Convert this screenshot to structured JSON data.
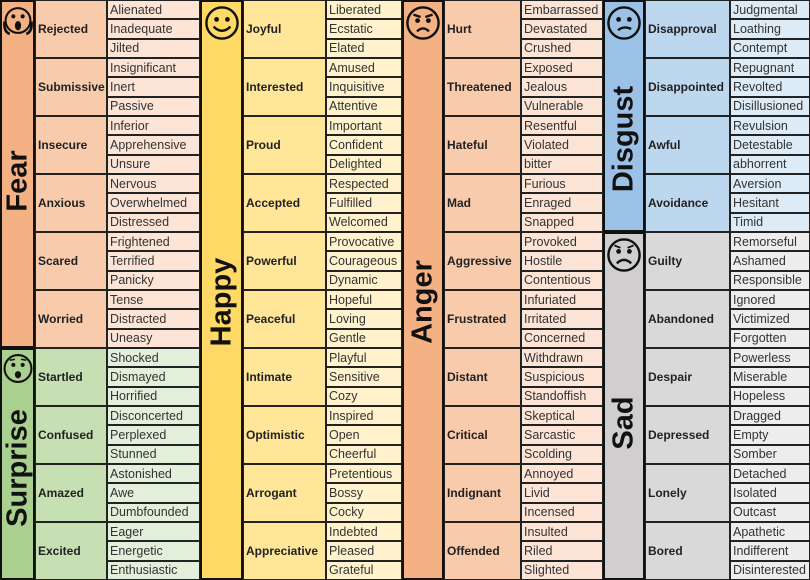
{
  "sections": [
    {
      "name": "Fear",
      "icon": "fearful-face-icon",
      "colors": {
        "main": "#f4b183",
        "secondary": "#f8cbad",
        "tertiary": "#fce4d6"
      },
      "groups": [
        {
          "label": "Rejected",
          "items": [
            "Alienated",
            "Inadequate",
            "Jilted"
          ]
        },
        {
          "label": "Submissive",
          "items": [
            "Insignificant",
            "Inert",
            "Passive"
          ]
        },
        {
          "label": "Insecure",
          "items": [
            "Inferior",
            "Apprehensive",
            "Unsure"
          ]
        },
        {
          "label": "Anxious",
          "items": [
            "Nervous",
            "Overwhelmed",
            "Distressed"
          ]
        },
        {
          "label": "Scared",
          "items": [
            "Frightened",
            "Terrified",
            "Panicky"
          ]
        },
        {
          "label": "Worried",
          "items": [
            "Tense",
            "Distracted",
            "Uneasy"
          ]
        }
      ]
    },
    {
      "name": "Surprise",
      "icon": "surprised-face-icon",
      "colors": {
        "main": "#a9d08e",
        "secondary": "#c6e0b4",
        "tertiary": "#e2efda"
      },
      "groups": [
        {
          "label": "Startled",
          "items": [
            "Shocked",
            "Dismayed",
            "Horrified"
          ]
        },
        {
          "label": "Confused",
          "items": [
            "Disconcerted",
            "Perplexed",
            "Stunned"
          ]
        },
        {
          "label": "Amazed",
          "items": [
            "Astonished",
            "Awe",
            "Dumbfounded"
          ]
        },
        {
          "label": "Excited",
          "items": [
            "Eager",
            "Energetic",
            "Enthusiastic"
          ]
        }
      ]
    },
    {
      "name": "Happy",
      "icon": "smiling-face-icon",
      "colors": {
        "main": "#ffd966",
        "secondary": "#ffe699",
        "tertiary": "#fff2cc"
      },
      "groups": [
        {
          "label": "Joyful",
          "items": [
            "Liberated",
            "Ecstatic",
            "Elated"
          ]
        },
        {
          "label": "Interested",
          "items": [
            "Amused",
            "Inquisitive",
            "Attentive"
          ]
        },
        {
          "label": "Proud",
          "items": [
            "Important",
            "Confident",
            "Delighted"
          ]
        },
        {
          "label": "Accepted",
          "items": [
            "Respected",
            "Fulfilled",
            "Welcomed"
          ]
        },
        {
          "label": "Powerful",
          "items": [
            "Provocative",
            "Courageous",
            "Dynamic"
          ]
        },
        {
          "label": "Peaceful",
          "items": [
            "Hopeful",
            "Loving",
            "Gentle"
          ]
        },
        {
          "label": "Intimate",
          "items": [
            "Playful",
            "Sensitive",
            "Cozy"
          ]
        },
        {
          "label": "Optimistic",
          "items": [
            "Inspired",
            "Open",
            "Cheerful"
          ]
        },
        {
          "label": "Arrogant",
          "items": [
            "Pretentious",
            "Bossy",
            "Cocky"
          ]
        },
        {
          "label": "Appreciative",
          "items": [
            "Indebted",
            "Pleased",
            "Grateful"
          ]
        }
      ]
    },
    {
      "name": "Anger",
      "icon": "angry-face-icon",
      "colors": {
        "main": "#f4b183",
        "secondary": "#f8cbad",
        "tertiary": "#fce4d6"
      },
      "groups": [
        {
          "label": "Hurt",
          "items": [
            "Embarrassed",
            "Devastated",
            "Crushed"
          ]
        },
        {
          "label": "Threatened",
          "items": [
            "Exposed",
            "Jealous",
            "Vulnerable"
          ]
        },
        {
          "label": "Hateful",
          "items": [
            "Resentful",
            "Violated",
            "bitter"
          ]
        },
        {
          "label": "Mad",
          "items": [
            "Furious",
            "Enraged",
            "Snapped"
          ]
        },
        {
          "label": "Aggressive",
          "items": [
            "Provoked",
            "Hostile",
            "Contentious"
          ]
        },
        {
          "label": "Frustrated",
          "items": [
            "Infuriated",
            "Irritated",
            "Concerned"
          ]
        },
        {
          "label": "Distant",
          "items": [
            "Withdrawn",
            "Suspicious",
            "Standoffish"
          ]
        },
        {
          "label": "Critical",
          "items": [
            "Skeptical",
            "Sarcastic",
            "Scolding"
          ]
        },
        {
          "label": "Indignant",
          "items": [
            "Annoyed",
            "Livid",
            "Incensed"
          ]
        },
        {
          "label": "Offended",
          "items": [
            "Insulted",
            "Riled",
            "Slighted"
          ]
        }
      ]
    },
    {
      "name": "Disgust",
      "icon": "confused-face-icon",
      "colors": {
        "main": "#9bc2e6",
        "secondary": "#bdd7ee",
        "tertiary": "#ddebf7"
      },
      "groups": [
        {
          "label": "Disapproval",
          "items": [
            "Judgmental",
            "Loathing",
            "Contempt"
          ]
        },
        {
          "label": "Disappointed",
          "items": [
            "Repugnant",
            "Revolted",
            "Disillusioned"
          ]
        },
        {
          "label": "Awful",
          "items": [
            "Revulsion",
            "Detestable",
            "abhorrent"
          ]
        },
        {
          "label": "Avoidance",
          "items": [
            "Aversion",
            "Hesitant",
            "Timid"
          ]
        }
      ]
    },
    {
      "name": "Sad",
      "icon": "sad-face-icon",
      "colors": {
        "main": "#d0cece",
        "secondary": "#d9d9d9",
        "tertiary": "#ededed"
      },
      "groups": [
        {
          "label": "Guilty",
          "items": [
            "Remorseful",
            "Ashamed",
            "Responsible"
          ]
        },
        {
          "label": "Abandoned",
          "items": [
            "Ignored",
            "Victimized",
            "Forgotten"
          ]
        },
        {
          "label": "Despair",
          "items": [
            "Powerless",
            "Miserable",
            "Hopeless"
          ]
        },
        {
          "label": "Depressed",
          "items": [
            "Dragged",
            "Empty",
            "Somber"
          ]
        },
        {
          "label": "Lonely",
          "items": [
            "Detached",
            "Isolated",
            "Outcast"
          ]
        },
        {
          "label": "Bored",
          "items": [
            "Apathetic",
            "Indifferent",
            "Disinterested"
          ]
        }
      ]
    }
  ]
}
